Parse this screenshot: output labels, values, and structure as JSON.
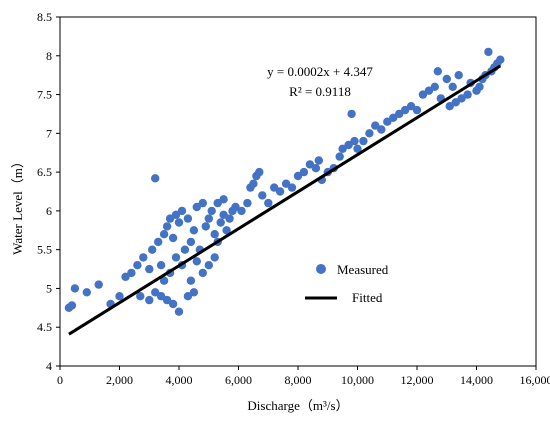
{
  "chart_data": {
    "type": "scatter",
    "xlabel": "Discharge（m³/s）",
    "ylabel": "Water Level（m）",
    "xlim": [
      0,
      16000
    ],
    "ylim": [
      4,
      8.5
    ],
    "x_ticks": [
      {
        "value": 0,
        "label": "0"
      },
      {
        "value": 2000,
        "label": "2,000"
      },
      {
        "value": 4000,
        "label": "4,000"
      },
      {
        "value": 6000,
        "label": "6,000"
      },
      {
        "value": 8000,
        "label": "8,000"
      },
      {
        "value": 10000,
        "label": "10,000"
      },
      {
        "value": 12000,
        "label": "12,000"
      },
      {
        "value": 14000,
        "label": "14,000"
      },
      {
        "value": 16000,
        "label": "16,000"
      }
    ],
    "y_ticks": [
      {
        "value": 4,
        "label": "4"
      },
      {
        "value": 4.5,
        "label": "4.5"
      },
      {
        "value": 5,
        "label": "5"
      },
      {
        "value": 5.5,
        "label": "5.5"
      },
      {
        "value": 6,
        "label": "6"
      },
      {
        "value": 6.5,
        "label": "6.5"
      },
      {
        "value": 7,
        "label": "7"
      },
      {
        "value": 7.5,
        "label": "7.5"
      },
      {
        "value": 8,
        "label": "8"
      },
      {
        "value": 8.5,
        "label": "8.5"
      }
    ],
    "grid": false,
    "legend_position": "center-right",
    "equation": "y = 0.0002x + 4.347",
    "r_squared": "R² = 0.9118",
    "series": [
      {
        "name": "Measured",
        "type": "scatter",
        "color": "#4472C4",
        "x": [
          300,
          400,
          500,
          900,
          1300,
          1700,
          2000,
          2200,
          2400,
          2600,
          2700,
          2800,
          3000,
          3000,
          3100,
          3200,
          3200,
          3300,
          3400,
          3400,
          3500,
          3500,
          3600,
          3600,
          3700,
          3700,
          3800,
          3800,
          3900,
          3900,
          4000,
          4000,
          4100,
          4100,
          4200,
          4300,
          4300,
          4400,
          4400,
          4500,
          4500,
          4600,
          4600,
          4700,
          4800,
          4800,
          4900,
          5000,
          5000,
          5100,
          5200,
          5200,
          5300,
          5300,
          5400,
          5500,
          5500,
          5600,
          5700,
          5800,
          5900,
          6100,
          6300,
          6400,
          6500,
          6600,
          6700,
          6800,
          7000,
          7200,
          7400,
          7600,
          7800,
          8000,
          8200,
          8400,
          8600,
          8700,
          8800,
          9000,
          9200,
          9400,
          9500,
          9700,
          9800,
          9900,
          10000,
          10200,
          10400,
          10600,
          10800,
          11000,
          11200,
          11400,
          11600,
          11800,
          12000,
          12200,
          12400,
          12600,
          12700,
          12800,
          13000,
          13100,
          13200,
          13300,
          13400,
          13500,
          13700,
          13800,
          14000,
          14100,
          14200,
          14300,
          14400,
          14500,
          14600,
          14700,
          14800
        ],
        "y": [
          4.75,
          4.78,
          5.0,
          4.95,
          5.05,
          4.8,
          4.9,
          5.15,
          5.2,
          5.3,
          4.9,
          5.4,
          5.25,
          4.85,
          5.5,
          6.42,
          4.95,
          5.6,
          5.3,
          4.9,
          5.7,
          5.1,
          5.8,
          4.85,
          5.9,
          5.2,
          5.65,
          4.8,
          5.95,
          5.4,
          5.85,
          4.7,
          6.0,
          5.3,
          5.5,
          5.9,
          4.9,
          5.6,
          5.1,
          5.75,
          4.95,
          6.05,
          5.35,
          5.5,
          6.1,
          5.2,
          5.8,
          5.9,
          5.3,
          6.0,
          5.7,
          5.4,
          6.1,
          5.6,
          5.85,
          5.95,
          6.15,
          5.75,
          5.9,
          6.0,
          6.05,
          6.0,
          6.1,
          6.3,
          6.35,
          6.45,
          6.5,
          6.2,
          6.1,
          6.3,
          6.25,
          6.35,
          6.3,
          6.45,
          6.5,
          6.6,
          6.55,
          6.65,
          6.4,
          6.5,
          6.55,
          6.7,
          6.8,
          6.85,
          7.25,
          6.9,
          6.8,
          6.9,
          7.0,
          7.1,
          7.05,
          7.15,
          7.2,
          7.25,
          7.3,
          7.35,
          7.3,
          7.5,
          7.55,
          7.6,
          7.8,
          7.45,
          7.7,
          7.35,
          7.6,
          7.4,
          7.75,
          7.45,
          7.5,
          7.65,
          7.55,
          7.6,
          7.7,
          7.75,
          8.05,
          7.8,
          7.85,
          7.9,
          7.95
        ]
      },
      {
        "name": "Fitted",
        "type": "line",
        "color": "#000000",
        "x": [
          300,
          14800
        ],
        "y": [
          4.41,
          7.87
        ]
      }
    ]
  }
}
